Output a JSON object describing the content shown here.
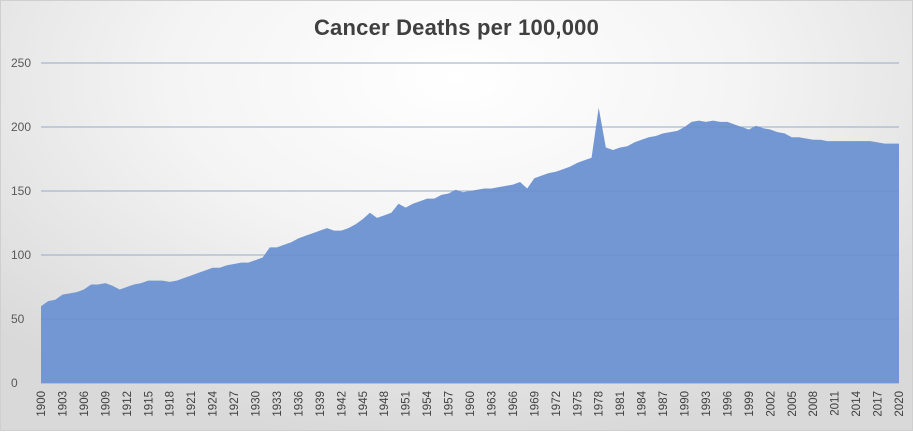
{
  "chart_data": {
    "type": "area",
    "title": "Cancer Deaths per 100,000",
    "xlabel": "",
    "ylabel": "",
    "ylim": [
      0,
      250
    ],
    "yticks": [
      0,
      50,
      100,
      150,
      200,
      250
    ],
    "xlim": [
      1900,
      2020
    ],
    "xticks": [
      1900,
      1903,
      1906,
      1909,
      1912,
      1915,
      1918,
      1921,
      1924,
      1927,
      1930,
      1933,
      1936,
      1939,
      1942,
      1945,
      1948,
      1951,
      1954,
      1957,
      1960,
      1963,
      1966,
      1969,
      1972,
      1975,
      1978,
      1981,
      1984,
      1987,
      1990,
      1993,
      1996,
      1999,
      2002,
      2005,
      2008,
      2011,
      2014,
      2017,
      2020
    ],
    "grid": "horizontal",
    "legend": "none",
    "fill_color": "#7297d3",
    "grid_color": "#d9d9d9",
    "x": [
      1900,
      1901,
      1902,
      1903,
      1904,
      1905,
      1906,
      1907,
      1908,
      1909,
      1910,
      1911,
      1912,
      1913,
      1914,
      1915,
      1916,
      1917,
      1918,
      1919,
      1920,
      1921,
      1922,
      1923,
      1924,
      1925,
      1926,
      1927,
      1928,
      1929,
      1930,
      1931,
      1932,
      1933,
      1934,
      1935,
      1936,
      1937,
      1938,
      1939,
      1940,
      1941,
      1942,
      1943,
      1944,
      1945,
      1946,
      1947,
      1948,
      1949,
      1950,
      1951,
      1952,
      1953,
      1954,
      1955,
      1956,
      1957,
      1958,
      1959,
      1960,
      1961,
      1962,
      1963,
      1964,
      1965,
      1966,
      1967,
      1968,
      1969,
      1970,
      1971,
      1972,
      1973,
      1974,
      1975,
      1976,
      1977,
      1978,
      1979,
      1980,
      1981,
      1982,
      1983,
      1984,
      1985,
      1986,
      1987,
      1988,
      1989,
      1990,
      1991,
      1992,
      1993,
      1994,
      1995,
      1996,
      1997,
      1998,
      1999,
      2000,
      2001,
      2002,
      2003,
      2004,
      2005,
      2006,
      2007,
      2008,
      2009,
      2010,
      2011,
      2012,
      2013,
      2014,
      2015,
      2016,
      2017,
      2018,
      2019,
      2020
    ],
    "values": [
      60,
      64,
      65,
      69,
      70,
      71,
      73,
      77,
      77,
      78,
      76,
      73,
      75,
      77,
      78,
      80,
      80,
      80,
      79,
      80,
      82,
      84,
      86,
      88,
      90,
      90,
      92,
      93,
      94,
      94,
      96,
      98,
      106,
      106,
      108,
      110,
      113,
      115,
      117,
      119,
      121,
      119,
      119,
      121,
      124,
      128,
      133,
      129,
      131,
      133,
      140,
      137,
      140,
      142,
      144,
      144,
      147,
      148,
      151,
      149,
      150,
      151,
      152,
      152,
      153,
      154,
      155,
      157,
      152,
      160,
      162,
      164,
      165,
      167,
      169,
      172,
      174,
      176,
      215,
      184,
      182,
      184,
      185,
      188,
      190,
      192,
      193,
      195,
      196,
      197,
      200,
      204,
      205,
      204,
      205,
      204,
      204,
      202,
      200,
      198,
      201,
      199,
      198,
      196,
      195,
      192,
      192,
      191,
      190,
      190,
      189,
      189,
      189,
      189,
      189,
      189,
      189,
      188,
      187,
      187,
      187
    ]
  }
}
